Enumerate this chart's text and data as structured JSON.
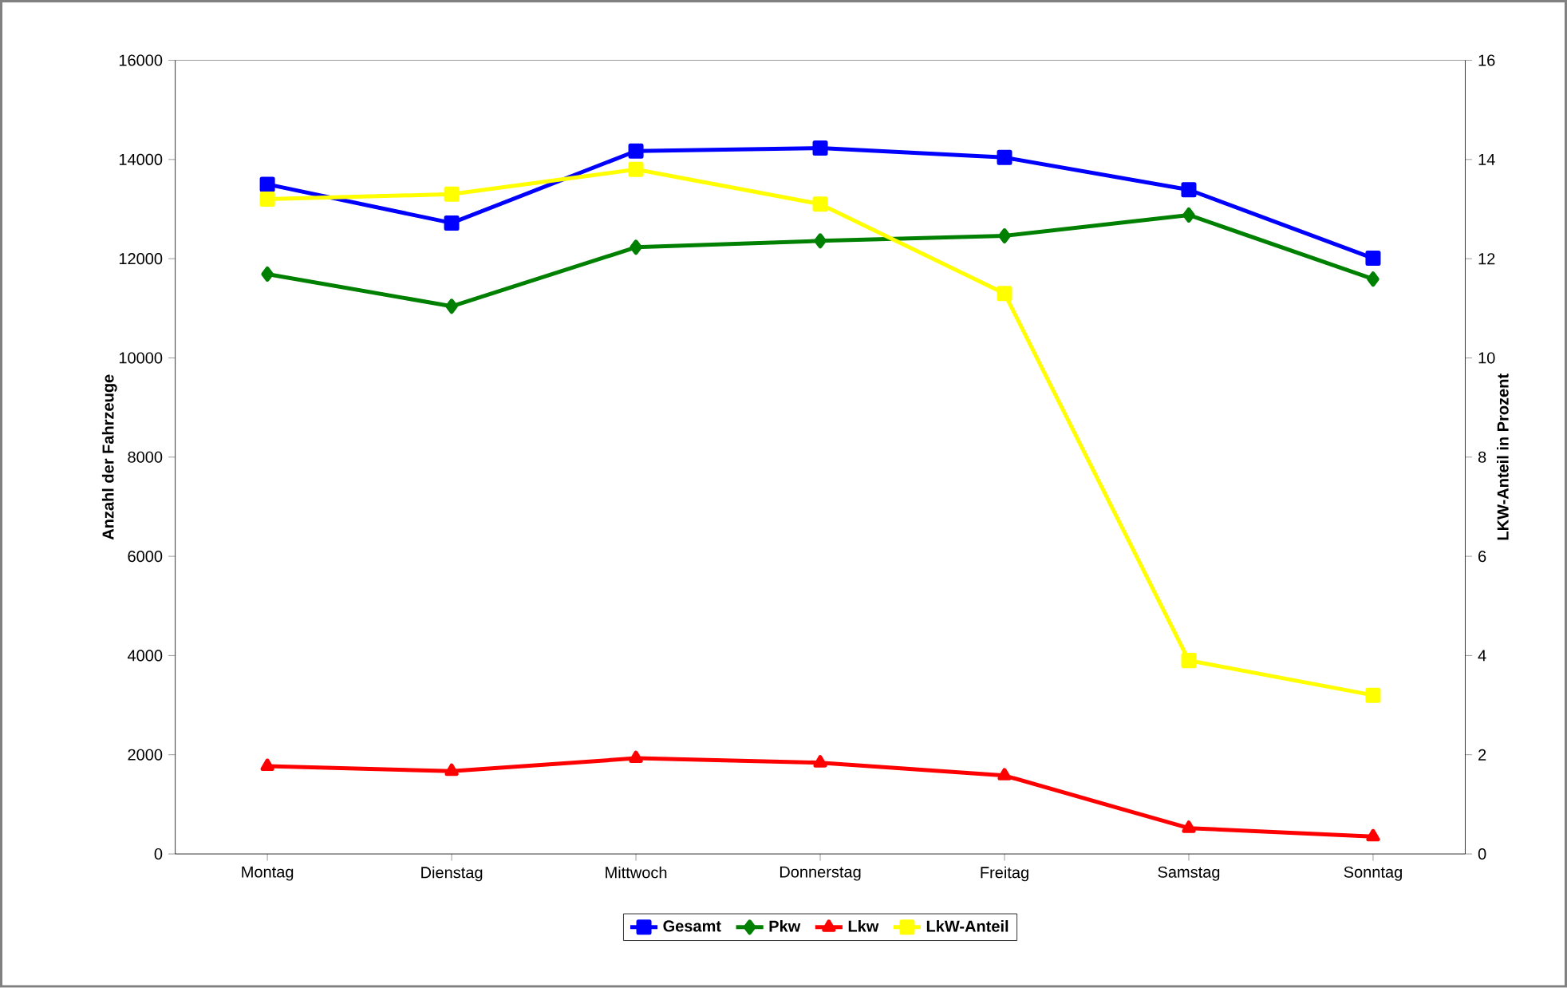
{
  "chart_data": {
    "type": "line",
    "categories": [
      "Montag",
      "Dienstag",
      "Mittwoch",
      "Donnerstag",
      "Freitag",
      "Samstag",
      "Sonntag"
    ],
    "ylabel": "Anzahl der Fahrzeuge",
    "y2label": "LKW-Anteil in Prozent",
    "ylim": [
      0,
      16000
    ],
    "yticks": [
      0,
      2000,
      4000,
      6000,
      8000,
      10000,
      12000,
      14000,
      16000
    ],
    "y2lim": [
      0,
      16
    ],
    "y2ticks": [
      0,
      2,
      4,
      6,
      8,
      10,
      12,
      14,
      16
    ],
    "legend": "bottom",
    "grid": false,
    "line_style": "solid",
    "series": [
      {
        "name": "Gesamt",
        "color": "#0000ff",
        "marker": "square",
        "values": [
          13500,
          12720,
          14170,
          14230,
          14040,
          13390,
          12010
        ]
      },
      {
        "name": "Pkw",
        "color": "#008000",
        "marker": "diamond",
        "values": [
          11690,
          11040,
          12230,
          12360,
          12460,
          12880,
          11590
        ]
      },
      {
        "name": "Lkw",
        "color": "#ff0000",
        "marker": "triangle",
        "values": [
          1770,
          1670,
          1930,
          1840,
          1580,
          520,
          350
        ]
      },
      {
        "name": "LkW-Anteil",
        "color": "#ffff00",
        "marker": "square",
        "axis": "y2",
        "values": [
          13.2,
          13.3,
          13.8,
          13.1,
          11.3,
          3.9,
          3.2
        ]
      }
    ]
  }
}
